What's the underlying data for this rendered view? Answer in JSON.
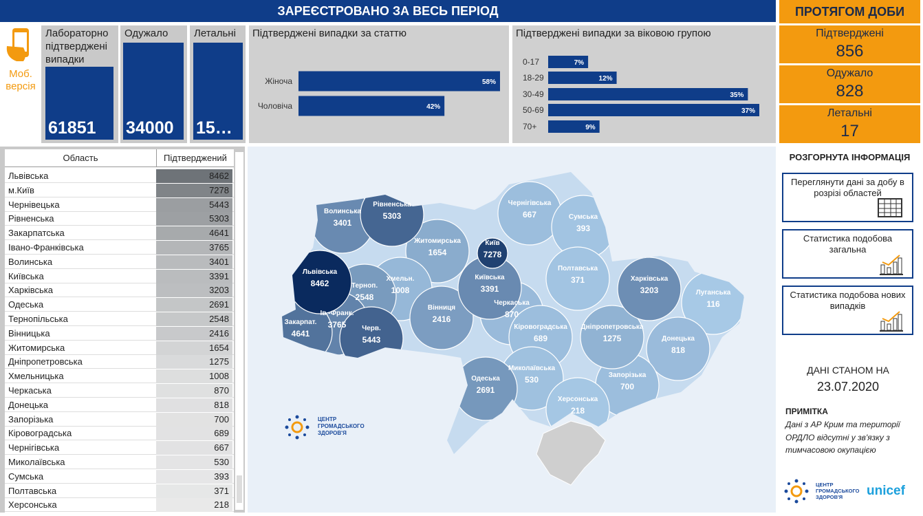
{
  "header": {
    "title": "ЗАРЕЄСТРОВАНО ЗА ВЕСЬ ПЕРІОД",
    "daily_title": "ПРОТЯГОМ ДОБИ"
  },
  "mobile": {
    "label": "Моб. версія"
  },
  "totals": [
    {
      "label": "Лабораторно підтверджені випадки",
      "value": 61851
    },
    {
      "label": "Одужало",
      "value": 34000
    },
    {
      "label": "Летальні",
      "value": "15…"
    }
  ],
  "daily": [
    {
      "label": "Підтверджені",
      "value": 856
    },
    {
      "label": "Одужало",
      "value": 828
    },
    {
      "label": "Летальні",
      "value": 17
    }
  ],
  "chart_data": [
    {
      "type": "bar",
      "orientation": "horizontal",
      "title": "Підтверджені випадки за статтю",
      "categories": [
        "Жіноча",
        "Чоловіча"
      ],
      "values": [
        58,
        42
      ],
      "value_labels": [
        "58%",
        "42%"
      ],
      "color": "#0f3d89"
    },
    {
      "type": "bar",
      "orientation": "horizontal",
      "title": "Підтверджені випадки за віковою групою",
      "categories": [
        "0-17",
        "18-29",
        "30-49",
        "50-69",
        "70+"
      ],
      "values": [
        7,
        12,
        35,
        37,
        9
      ],
      "value_labels": [
        "7%",
        "12%",
        "35%",
        "37%",
        "9%"
      ],
      "color": "#0f3d89"
    }
  ],
  "table": {
    "columns": [
      "Область",
      "Підтверджений"
    ],
    "rows": [
      [
        "Львівська",
        8462
      ],
      [
        "м.Київ",
        7278
      ],
      [
        "Чернівецька",
        5443
      ],
      [
        "Рівненська",
        5303
      ],
      [
        "Закарпатська",
        4641
      ],
      [
        "Івано-Франківська",
        3765
      ],
      [
        "Волинська",
        3401
      ],
      [
        "Київська",
        3391
      ],
      [
        "Харківська",
        3203
      ],
      [
        "Одеська",
        2691
      ],
      [
        "Тернопільська",
        2548
      ],
      [
        "Вінницька",
        2416
      ],
      [
        "Житомирська",
        1654
      ],
      [
        "Дніпропетровська",
        1275
      ],
      [
        "Хмельницька",
        1008
      ],
      [
        "Черкаська",
        870
      ],
      [
        "Донецька",
        818
      ],
      [
        "Запорізька",
        700
      ],
      [
        "Кіровоградська",
        689
      ],
      [
        "Чернігівська",
        667
      ],
      [
        "Миколаївська",
        530
      ],
      [
        "Сумська",
        393
      ],
      [
        "Полтавська",
        371
      ],
      [
        "Херсонська",
        218
      ]
    ]
  },
  "map": {
    "regions": [
      {
        "label": "Чернігівська",
        "value": 667
      },
      {
        "label": "Сумська",
        "value": 393
      },
      {
        "label": "Полтавська",
        "value": 371
      },
      {
        "label": "Луганська",
        "value": 116
      },
      {
        "label": "Житомирська",
        "value": 1654
      },
      {
        "label": "Черкаська",
        "value": 870
      },
      {
        "label": "Кіровоградська",
        "value": 689
      },
      {
        "label": "Донецька",
        "value": 818
      },
      {
        "label": "Миколаївська",
        "value": 530
      },
      {
        "label": "Запорізька",
        "value": 700
      },
      {
        "label": "Херсонська",
        "value": 218
      },
      {
        "label": "Хмельн.",
        "value": 1008
      },
      {
        "label": "Дніпропетровська",
        "value": 1275
      },
      {
        "label": "Вінниця",
        "value": 2416
      },
      {
        "label": "Одеська",
        "value": 2691
      },
      {
        "label": "Тернoп.",
        "value": 2548
      },
      {
        "label": "Харківська",
        "value": 3203
      },
      {
        "label": "Київська",
        "value": 3391
      },
      {
        "label": "Волинська",
        "value": 3401
      },
      {
        "label": "Ів.-Франк.",
        "value": 3765
      },
      {
        "label": "Закарпат.",
        "value": 4641
      },
      {
        "label": "Рівненська",
        "value": 5303
      },
      {
        "label": "Черв.",
        "value": 5443
      },
      {
        "label": "Київ",
        "value": 7278
      },
      {
        "label": "Львівська",
        "value": 8462
      }
    ],
    "logo": "ЦЕНТР ГРОМАДСЬКОГО ЗДОРОВ'Я"
  },
  "sidebar": {
    "title": "РОЗГОРНУТА ІНФОРМАЦІЯ",
    "buttons": [
      "Переглянути дані за добу в розрізі областей",
      "Статистика подобова загальна",
      "Статистика подобова нових випадків"
    ],
    "date_label": "ДАНІ СТАНОМ НА",
    "date": "23.07.2020",
    "note_title": "ПРИМІТКА",
    "note_lines": [
      "Дані з АР Крим та території",
      "ОРДЛО відсутні у зв'язку з",
      "тимчасовою окупацією"
    ],
    "logos": [
      "ЦЕНТР ГРОМАДСЬКОГО ЗДОРОВ'Я",
      "unicef"
    ]
  }
}
